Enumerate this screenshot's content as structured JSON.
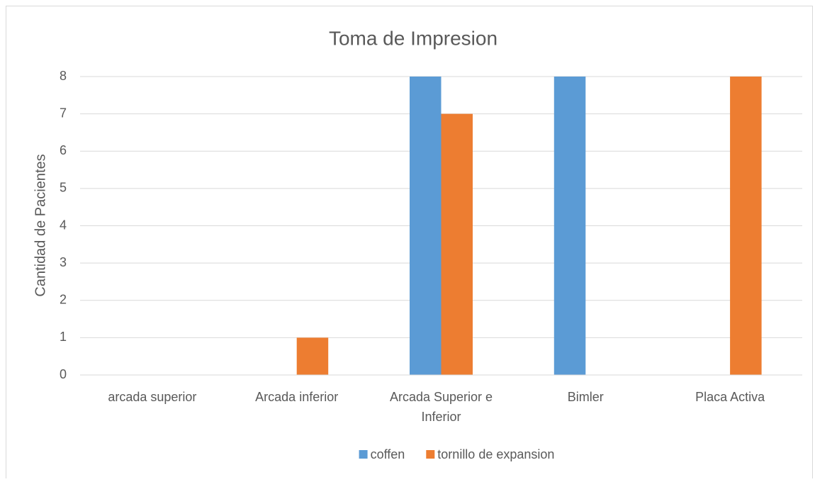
{
  "chart_data": {
    "type": "bar",
    "title": "Toma de Impresion",
    "y_label": "Cantidad de Pacientes",
    "categories": [
      "arcada superior",
      "Arcada inferior",
      "Arcada Superior e Inferior",
      "Bimler",
      "Placa Activa"
    ],
    "series": [
      {
        "name": "coffen",
        "color": "#5b9bd5",
        "values": [
          0,
          0,
          8,
          8,
          0
        ]
      },
      {
        "name": "tornillo de expansion",
        "color": "#ed7d31",
        "values": [
          0,
          1,
          7,
          0,
          8
        ]
      }
    ],
    "ylim": [
      0,
      8
    ],
    "yticks": [
      0,
      1,
      2,
      3,
      4,
      5,
      6,
      7,
      8
    ],
    "grid": true,
    "legend": "bottom"
  }
}
